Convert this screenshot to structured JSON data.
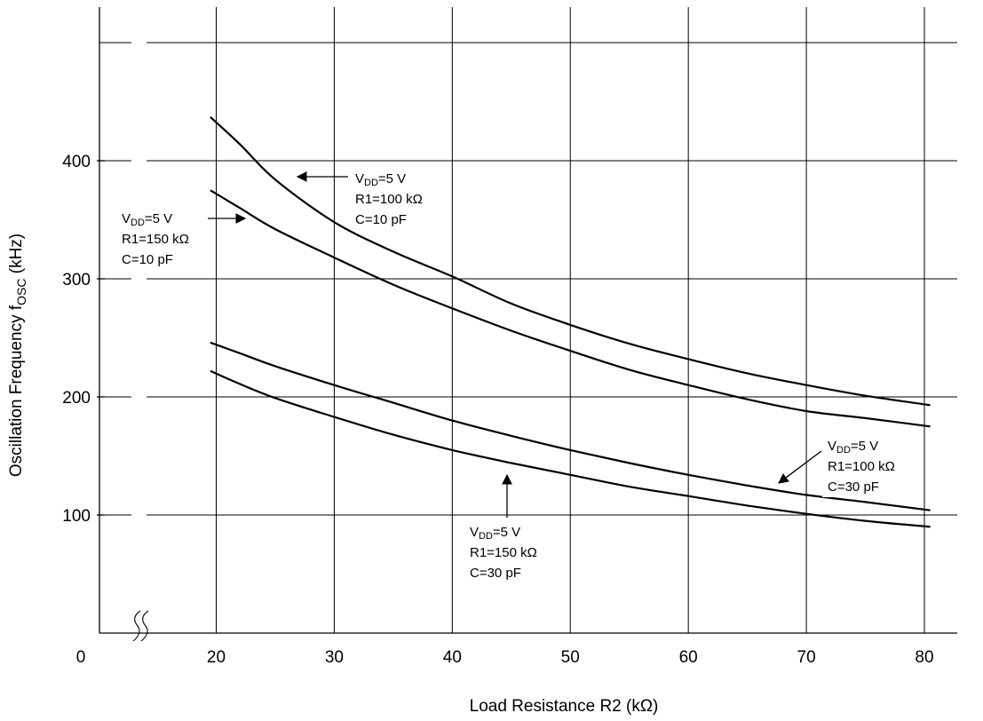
{
  "chart_data": {
    "type": "line",
    "xlabel": "Load Resistance R2 (kΩ)",
    "ylabel_main": "Oscillation Frequency f",
    "ylabel_sub": "OSC",
    "ylabel_unit": " (kHz)",
    "x_ticks": [
      20,
      30,
      40,
      50,
      60,
      70,
      80
    ],
    "y_ticks": [
      100,
      200,
      300,
      400
    ],
    "origin_label": "0",
    "xlim": [
      0,
      85
    ],
    "ylim": [
      0,
      500
    ],
    "axis_break": true,
    "grid": true,
    "series": [
      {
        "name": "VDD=5 V R1=100 kΩ C=10 pF",
        "x": [
          19.5,
          22,
          25,
          30,
          35,
          40,
          45,
          50,
          55,
          60,
          65,
          70,
          75,
          80.5
        ],
        "y": [
          437,
          414,
          384,
          348,
          323,
          302,
          279,
          261,
          245,
          232,
          220,
          210,
          201,
          193
        ]
      },
      {
        "name": "VDD=5 V R1=150 kΩ C=10 pF",
        "x": [
          19.5,
          22,
          25,
          30,
          35,
          40,
          45,
          50,
          55,
          60,
          65,
          70,
          75,
          80.5
        ],
        "y": [
          375,
          360,
          342,
          318,
          295,
          275,
          256,
          239,
          223,
          210,
          198,
          188,
          182,
          175
        ]
      },
      {
        "name": "VDD=5 V R1=100 kΩ C=30 pF",
        "x": [
          19.5,
          22,
          25,
          30,
          35,
          40,
          45,
          50,
          55,
          60,
          65,
          70,
          75,
          80.5
        ],
        "y": [
          246,
          237,
          226,
          210,
          195,
          180,
          167,
          155,
          144,
          134,
          125,
          117,
          111,
          104
        ]
      },
      {
        "name": "VDD=5 V R1=150 kΩ C=30 pF",
        "x": [
          19.5,
          22,
          25,
          30,
          35,
          40,
          45,
          50,
          55,
          60,
          65,
          70,
          75,
          80.5
        ],
        "y": [
          222,
          211,
          199,
          183,
          168,
          155,
          144,
          134,
          124,
          116,
          108,
          101,
          95,
          90
        ]
      }
    ],
    "annotations": [
      {
        "line1_main": "V",
        "line1_sub": "DD",
        "line1_tail": "=5 V",
        "line2": "R1=100 kΩ",
        "line3": "C=10 pF"
      },
      {
        "line1_main": "V",
        "line1_sub": "DD",
        "line1_tail": "=5 V",
        "line2": "R1=150 kΩ",
        "line3": "C=10 pF"
      },
      {
        "line1_main": "V",
        "line1_sub": "DD",
        "line1_tail": "=5 V",
        "line2": "R1=100 kΩ",
        "line3": "C=30 pF"
      },
      {
        "line1_main": "V",
        "line1_sub": "DD",
        "line1_tail": "=5 V",
        "line2": "R1=150 kΩ",
        "line3": "C=30 pF"
      }
    ]
  }
}
